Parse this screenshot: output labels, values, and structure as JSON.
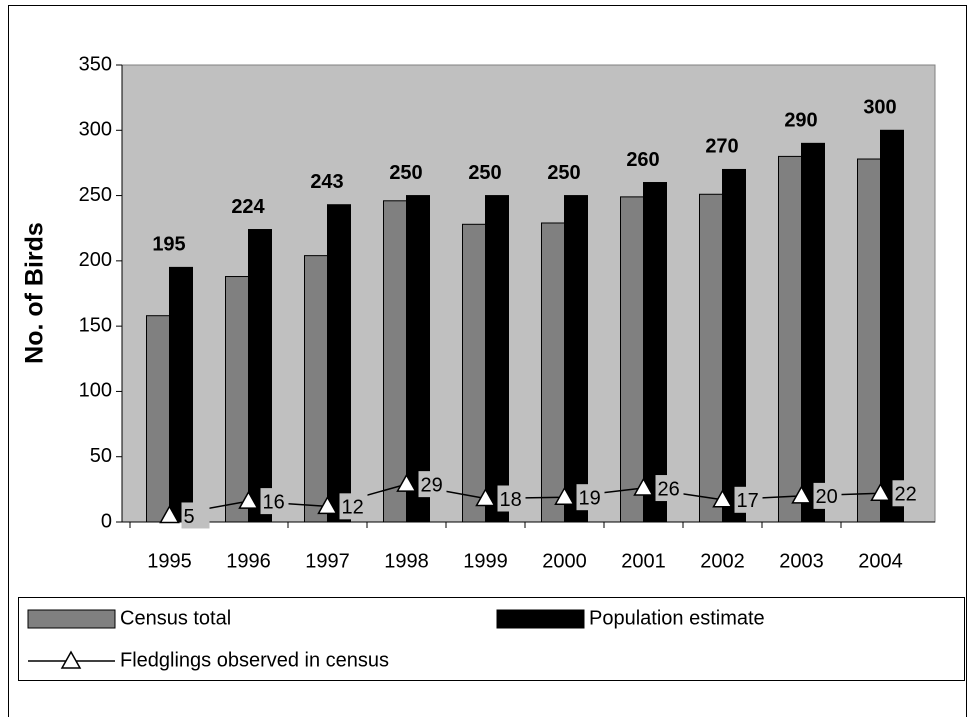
{
  "chart_data": {
    "type": "bar",
    "y_label": "No. of Birds",
    "categories": [
      "1995",
      "1996",
      "1997",
      "1998",
      "1999",
      "2000",
      "2001",
      "2002",
      "2003",
      "2004"
    ],
    "series": [
      {
        "name": "Census total",
        "color": "#808080",
        "values": [
          158,
          188,
          204,
          246,
          228,
          229,
          249,
          251,
          280,
          278
        ]
      },
      {
        "name": "Population estimate",
        "color": "#000000",
        "values": [
          195,
          224,
          243,
          250,
          250,
          250,
          260,
          270,
          290,
          300
        ]
      },
      {
        "name": "Fledglings observed in census",
        "type": "line",
        "color": "#000000",
        "values": [
          5,
          16,
          12,
          29,
          18,
          19,
          26,
          17,
          20,
          22
        ]
      }
    ],
    "ylim": [
      0,
      350
    ],
    "yticks": [
      0,
      50,
      100,
      150,
      200,
      250,
      300,
      350
    ],
    "plot_background": "#c0c0c0"
  }
}
